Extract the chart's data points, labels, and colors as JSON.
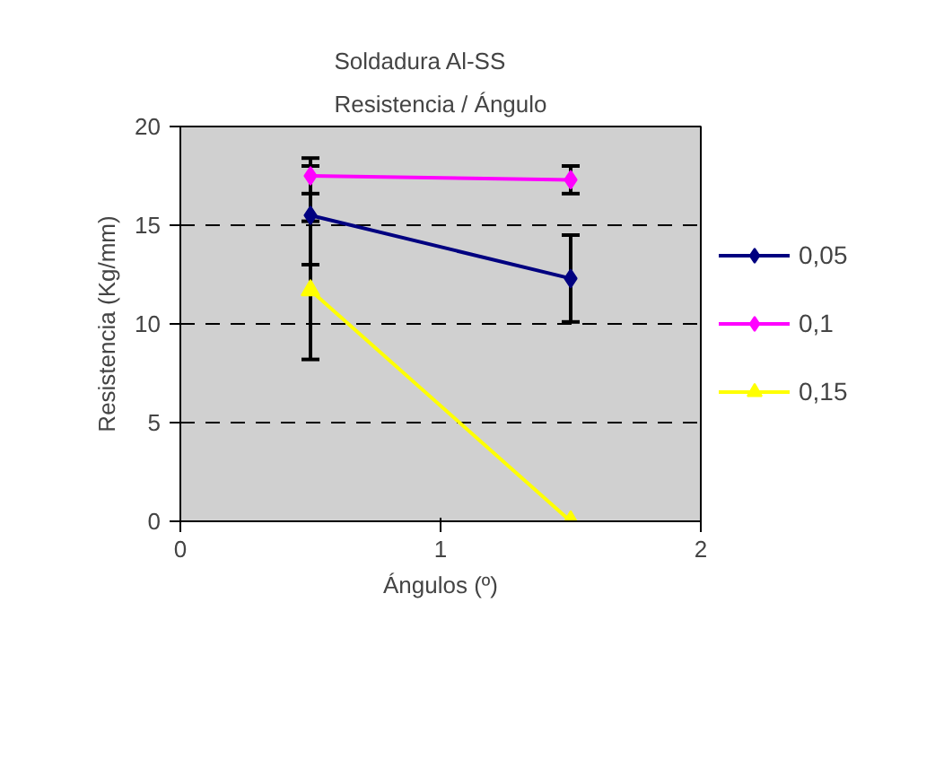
{
  "chart_data": {
    "type": "line",
    "title": "Soldadura  Al-SS\nResistencia / Ángulo",
    "xlabel": "Ángulos (º)",
    "ylabel": "Resistencia (Kg/mm)",
    "x": [
      0.5,
      1.5
    ],
    "series": [
      {
        "name": "0,05",
        "color": "#000080",
        "values": [
          15.5,
          12.3
        ],
        "errors": [
          2.5,
          2.2
        ],
        "marker": "diamond"
      },
      {
        "name": "0,1",
        "color": "#ff00ff",
        "values": [
          17.5,
          17.3
        ],
        "errors": [
          0.9,
          0.7
        ],
        "marker": "diamond"
      },
      {
        "name": "0,15",
        "color": "#ffff00",
        "values": [
          11.7,
          0
        ],
        "errors": [
          3.5,
          null
        ],
        "marker": "triangle"
      }
    ],
    "xlim": [
      0,
      2
    ],
    "xticks": [
      0,
      1,
      2
    ],
    "ylim": [
      0,
      20
    ],
    "yticks": [
      0,
      5,
      10,
      15,
      20
    ],
    "grid": "y",
    "legend": "right"
  }
}
